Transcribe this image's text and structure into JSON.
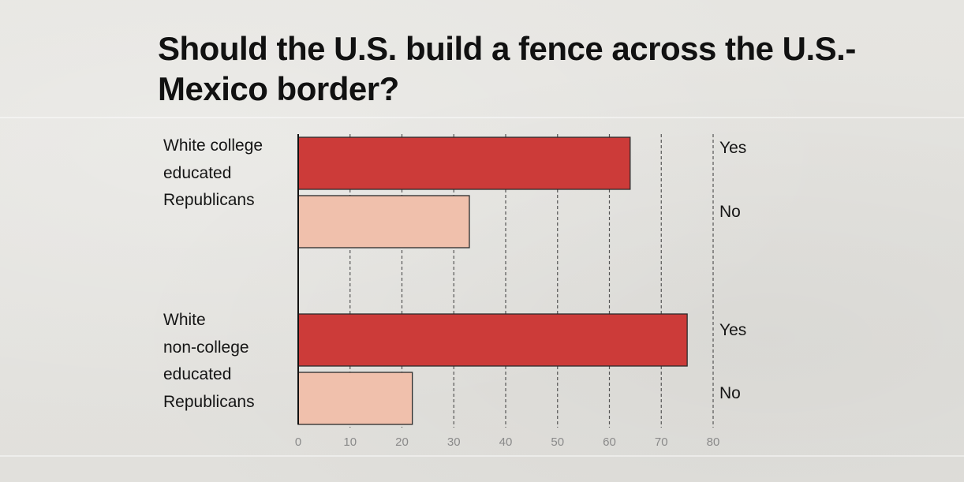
{
  "chart_data": {
    "type": "bar",
    "orientation": "horizontal",
    "title": "Should the U.S. build a fence across the U.S.-Mexico border?",
    "categories": [
      [
        "White college",
        "educated",
        "Republicans"
      ],
      [
        "White",
        "non-college",
        "educated",
        "Republicans"
      ]
    ],
    "series": [
      {
        "name": "Yes",
        "values": [
          64,
          75
        ],
        "color": "#cc3b39"
      },
      {
        "name": "No",
        "values": [
          33,
          22
        ],
        "color": "#f0c0ac"
      }
    ],
    "xlim": [
      0,
      80
    ],
    "xticks": [
      "0",
      "10",
      "20",
      "30",
      "40",
      "50",
      "60",
      "70",
      "80"
    ],
    "grid": "vertical dashed",
    "legend": "right of bars"
  }
}
